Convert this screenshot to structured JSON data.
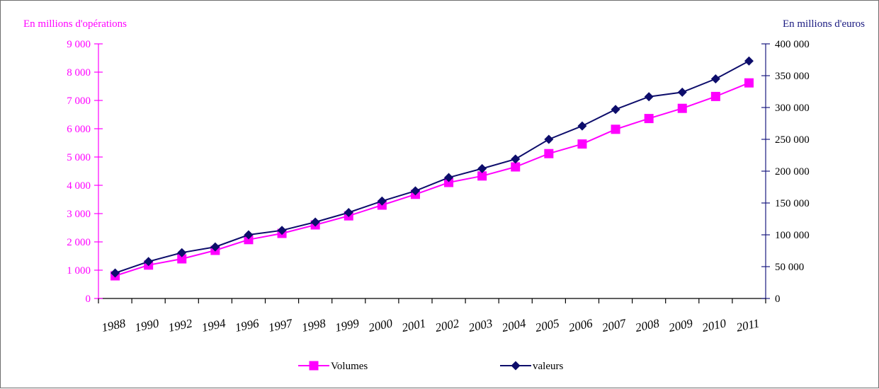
{
  "chart_data": {
    "type": "line",
    "categories": [
      "1988",
      "1990",
      "1992",
      "1994",
      "1996",
      "1997",
      "1998",
      "1999",
      "2000",
      "2001",
      "2002",
      "2003",
      "2004",
      "2005",
      "2006",
      "2007",
      "2008",
      "2009",
      "2010",
      "2011"
    ],
    "series": [
      {
        "name": "Volumes",
        "axis": "left",
        "color": "#ff00ff",
        "marker": "square",
        "values": [
          800,
          1180,
          1400,
          1700,
          2080,
          2300,
          2600,
          2920,
          3300,
          3680,
          4100,
          4330,
          4650,
          5120,
          5460,
          5980,
          6360,
          6720,
          7140,
          7620
        ]
      },
      {
        "name": "valeurs",
        "axis": "right",
        "color": "#0d0d6b",
        "marker": "diamond",
        "values": [
          40000,
          58000,
          72000,
          81000,
          100000,
          107000,
          120000,
          135000,
          153000,
          169000,
          190000,
          204000,
          219000,
          250000,
          271000,
          297000,
          317000,
          324000,
          345000,
          373000
        ]
      }
    ],
    "ylabel_left": "En millions d'opérations",
    "ylabel_right": "En millions d'euros",
    "ylim_left": [
      0,
      9000
    ],
    "ylim_right": [
      0,
      400000
    ],
    "yticks_left": [
      0,
      1000,
      2000,
      3000,
      4000,
      5000,
      6000,
      7000,
      8000,
      9000
    ],
    "yticks_right": [
      0,
      50000,
      100000,
      150000,
      200000,
      250000,
      300000,
      350000,
      400000
    ],
    "ytick_labels_left": [
      "0",
      "1 000",
      "2 000",
      "3 000",
      "4 000",
      "5 000",
      "6 000",
      "7 000",
      "8 000",
      "9 000"
    ],
    "ytick_labels_right": [
      "0",
      "50 000",
      "100 000",
      "150 000",
      "200 000",
      "250 000",
      "300 000",
      "350 000",
      "400 000"
    ],
    "grid": false,
    "legend_position": "bottom",
    "left_axis_color": "#ff00ff",
    "right_axis_color": "#1a1a80"
  }
}
